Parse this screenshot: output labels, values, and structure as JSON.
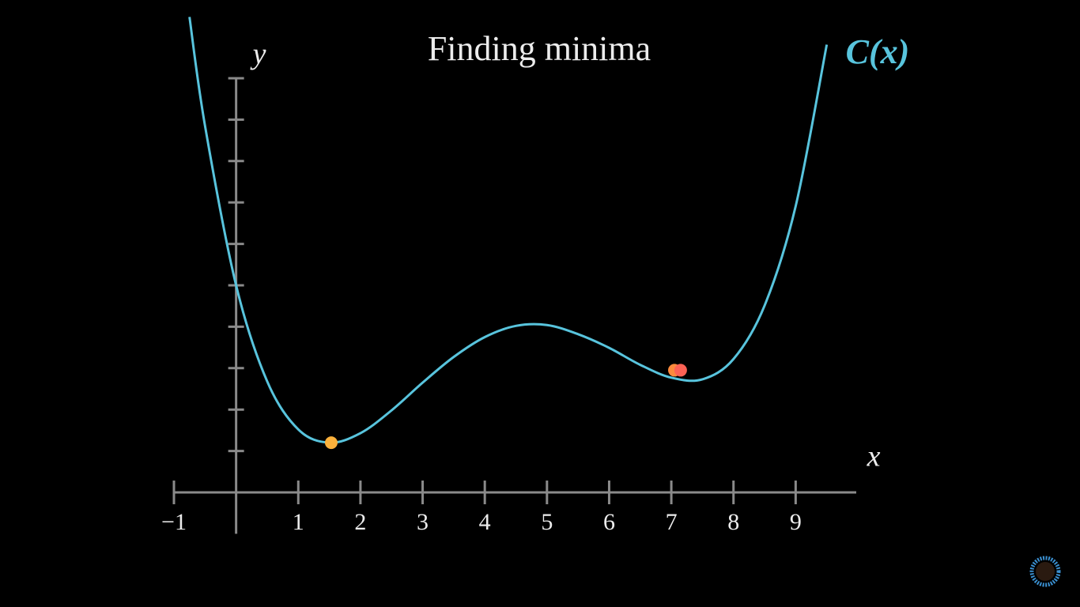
{
  "chart_data": {
    "type": "line",
    "title": "Finding minima",
    "x_label": "x",
    "y_label": "y",
    "x": [
      -0.75,
      -0.5,
      0,
      0.5,
      1,
      1.5,
      2,
      2.5,
      3,
      3.5,
      4,
      4.5,
      5,
      5.5,
      6,
      6.5,
      7,
      7.5,
      8,
      8.5,
      9,
      9.5
    ],
    "series": [
      {
        "name": "C(x)",
        "color": "#58c4dd",
        "values": [
          11.48,
          8.85,
          5,
          2.68,
          1.52,
          1.2,
          1.43,
          1.98,
          2.65,
          3.27,
          3.75,
          4.02,
          4.04,
          3.82,
          3.49,
          3.08,
          2.77,
          2.73,
          3.22,
          4.51,
          6.91,
          10.81
        ]
      }
    ],
    "points": {
      "x": [
        1.53,
        7.05,
        7.15
      ],
      "y": [
        1.2,
        2.95,
        2.95
      ],
      "colors": [
        "#fbb13c",
        "#fc8a3c",
        "#fc6255"
      ]
    },
    "xlim": [
      -1,
      10
    ],
    "ylim": [
      -1,
      11.9
    ],
    "xticks": [
      {
        "value": -1,
        "label": "−1"
      },
      1,
      2,
      3,
      4,
      5,
      6,
      7,
      8,
      9
    ],
    "yticks": [
      1,
      2,
      3,
      4,
      5,
      6,
      7,
      8,
      9,
      10
    ],
    "axis_color": "#8a8a8a"
  }
}
